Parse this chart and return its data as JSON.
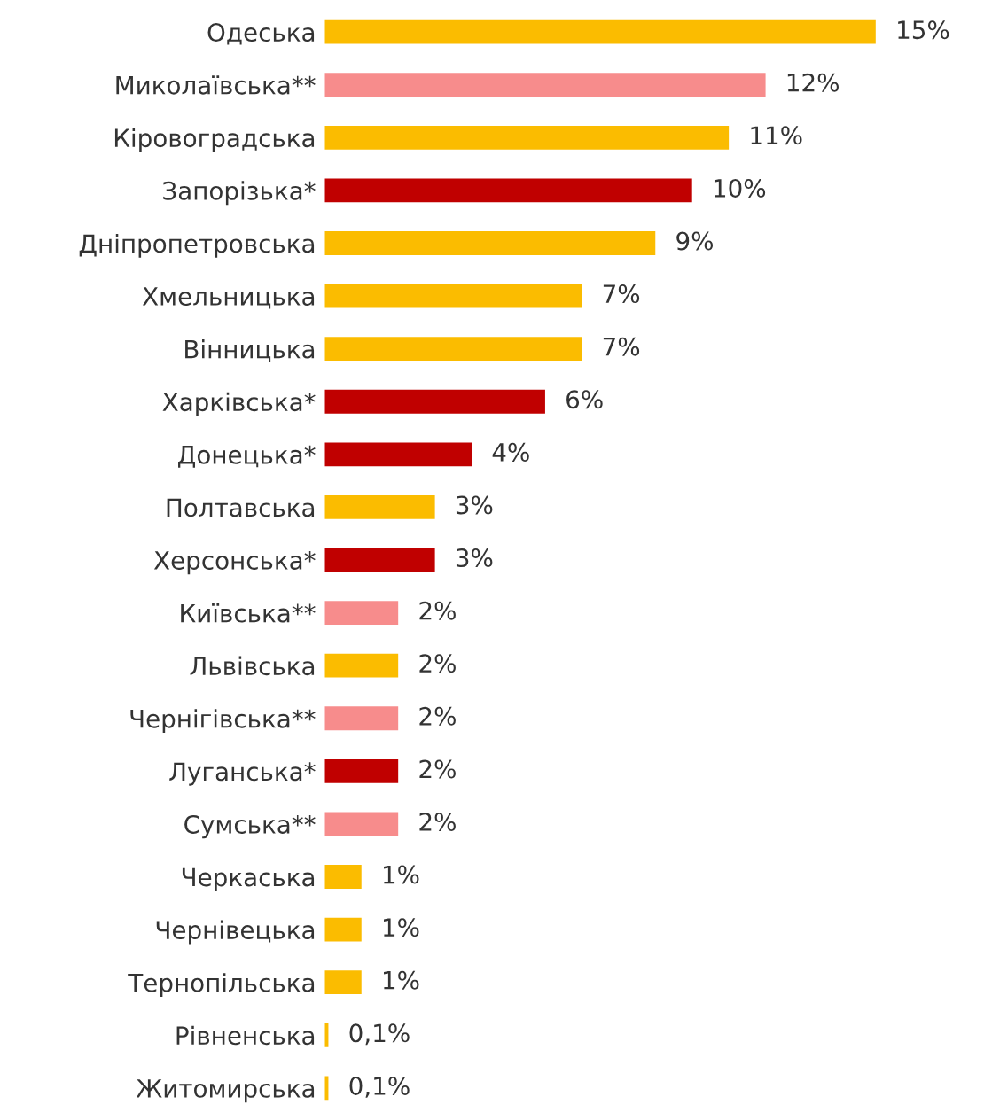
{
  "chart_data": {
    "type": "bar",
    "orientation": "horizontal",
    "categories": [
      "Одеська",
      "Миколаївська**",
      "Кіровоградська",
      "Запорізька*",
      "Дніпропетровська",
      "Хмельницька",
      "Вінницька",
      "Харківська*",
      "Донецька*",
      "Полтавська",
      "Херсонська*",
      "Київська**",
      "Львівська",
      "Чернігівська**",
      "Луганська*",
      "Сумська**",
      "Черкаська",
      "Чернівецька",
      "Тернопільська",
      "Рівненська",
      "Житомирська"
    ],
    "values": [
      15,
      12,
      11,
      10,
      9,
      7,
      7,
      6,
      4,
      3,
      3,
      2,
      2,
      2,
      2,
      2,
      1,
      1,
      1,
      0.1,
      0.1
    ],
    "colors": [
      "#fbbc00",
      "#f78c8c",
      "#fbbc00",
      "#c00000",
      "#fbbc00",
      "#fbbc00",
      "#fbbc00",
      "#c00000",
      "#c00000",
      "#fbbc00",
      "#c00000",
      "#f78c8c",
      "#fbbc00",
      "#f78c8c",
      "#c00000",
      "#f78c8c",
      "#fbbc00",
      "#fbbc00",
      "#fbbc00",
      "#fbbc00",
      "#fbbc00"
    ],
    "value_labels": [
      "15%",
      "12%",
      "11%",
      "10%",
      "9%",
      "7%",
      "7%",
      "6%",
      "4%",
      "3%",
      "3%",
      "2%",
      "2%",
      "2%",
      "2%",
      "2%",
      "1%",
      "1%",
      "1%",
      "0,1%",
      "0,1%"
    ],
    "grid": false,
    "legend": false
  }
}
